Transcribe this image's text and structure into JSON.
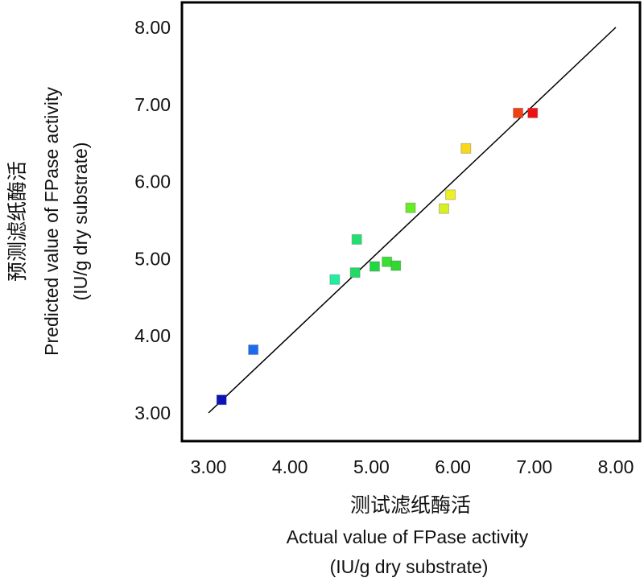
{
  "chart_data": {
    "type": "scatter",
    "title": "",
    "xlabel_cn": "测试滤纸酶活",
    "xlabel": "Actual value of FPase activity",
    "xlabel_unit": "(IU/g dry substrate)",
    "ylabel_cn": "预测滤纸酶活",
    "ylabel": "Predicted value of FPase activity",
    "ylabel_unit": "(IU/g dry substrate)",
    "xlim": [
      3.0,
      8.0
    ],
    "ylim": [
      3.0,
      8.0
    ],
    "xticks": [
      "3.00",
      "4.00",
      "5.00",
      "6.00",
      "7.00",
      "8.00"
    ],
    "yticks": [
      "3.00",
      "4.00",
      "5.00",
      "6.00",
      "7.00",
      "8.00"
    ],
    "reference_line": {
      "x": [
        3.0,
        8.0
      ],
      "y": [
        3.0,
        8.0
      ]
    },
    "grid": false,
    "points": [
      {
        "x": 3.16,
        "y": 3.17,
        "color": "#0c14b8"
      },
      {
        "x": 3.55,
        "y": 3.82,
        "color": "#1c6cf0"
      },
      {
        "x": 4.55,
        "y": 4.73,
        "color": "#22eea0"
      },
      {
        "x": 4.82,
        "y": 5.25,
        "color": "#22e070"
      },
      {
        "x": 4.8,
        "y": 4.82,
        "color": "#22dc62"
      },
      {
        "x": 5.04,
        "y": 4.9,
        "color": "#22d840"
      },
      {
        "x": 5.19,
        "y": 4.96,
        "color": "#38e030"
      },
      {
        "x": 5.3,
        "y": 4.91,
        "color": "#30d830"
      },
      {
        "x": 5.48,
        "y": 5.66,
        "color": "#66ee22"
      },
      {
        "x": 5.89,
        "y": 5.65,
        "color": "#d8f022"
      },
      {
        "x": 5.97,
        "y": 5.83,
        "color": "#eef022"
      },
      {
        "x": 6.16,
        "y": 6.43,
        "color": "#f8d818"
      },
      {
        "x": 6.8,
        "y": 6.89,
        "color": "#f04010"
      },
      {
        "x": 6.98,
        "y": 6.89,
        "color": "#f01010"
      }
    ]
  }
}
